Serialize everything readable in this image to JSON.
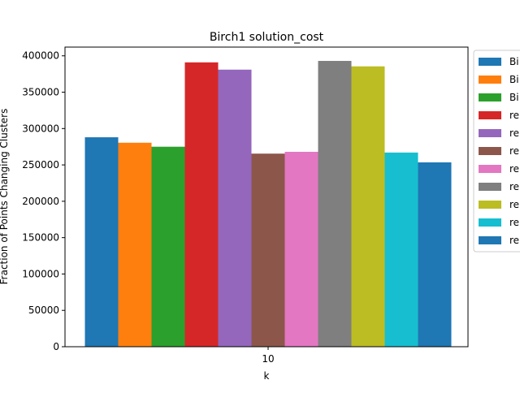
{
  "chart_data": {
    "type": "bar",
    "title": "Birch1 solution_cost",
    "xlabel": "k",
    "ylabel": "Fraction of Points Changing Clusters",
    "categories": [
      "10"
    ],
    "ylim": [
      0,
      412000
    ],
    "yticks": [
      0,
      50000,
      100000,
      150000,
      200000,
      250000,
      300000,
      350000,
      400000
    ],
    "grid": false,
    "legend_position": "outside-right",
    "series": [
      {
        "name": "Bi",
        "color": "#1f77b4",
        "values": [
          288000
        ]
      },
      {
        "name": "Bi",
        "color": "#ff7f0e",
        "values": [
          280500
        ]
      },
      {
        "name": "Bi",
        "color": "#2ca02c",
        "values": [
          275000
        ]
      },
      {
        "name": "re",
        "color": "#d62728",
        "values": [
          391000
        ]
      },
      {
        "name": "re",
        "color": "#9467bd",
        "values": [
          381000
        ]
      },
      {
        "name": "re",
        "color": "#8c564b",
        "values": [
          265500
        ]
      },
      {
        "name": "re",
        "color": "#e377c2",
        "values": [
          268000
        ]
      },
      {
        "name": "re",
        "color": "#7f7f7f",
        "values": [
          393000
        ]
      },
      {
        "name": "re",
        "color": "#bcbd22",
        "values": [
          385500
        ]
      },
      {
        "name": "re",
        "color": "#17becf",
        "values": [
          267000
        ]
      },
      {
        "name": "re",
        "color": "#1f77b4",
        "values": [
          253500
        ]
      }
    ]
  }
}
